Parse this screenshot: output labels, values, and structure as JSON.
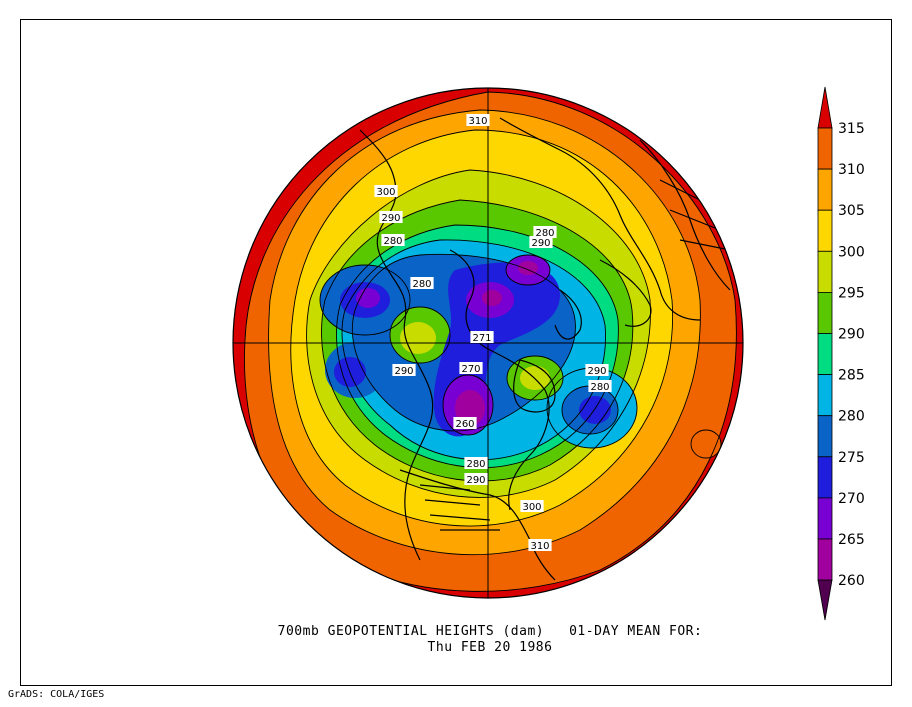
{
  "figure": {
    "title_line1": "700mb GEOPOTENTIAL HEIGHTS (dam)   01-DAY MEAN FOR:",
    "title_line2": "Thu FEB 20 1986",
    "credit": "GrADS: COLA/IGES"
  },
  "colorbar": {
    "levels": [
      "315",
      "310",
      "305",
      "300",
      "295",
      "290",
      "285",
      "280",
      "275",
      "270",
      "265",
      "260"
    ],
    "colors": [
      "#d80000",
      "#f06400",
      "#ffa500",
      "#ffd700",
      "#c8dc00",
      "#5ac800",
      "#00dc82",
      "#00b4e6",
      "#0a64c8",
      "#1e1edc",
      "#7800d2",
      "#a0009e",
      "#50004e"
    ]
  },
  "contour_labels": [
    "310",
    "300",
    "290",
    "280",
    "280",
    "290",
    "280",
    "271",
    "290",
    "270",
    "290",
    "280",
    "260",
    "280",
    "290",
    "300",
    "310"
  ]
}
